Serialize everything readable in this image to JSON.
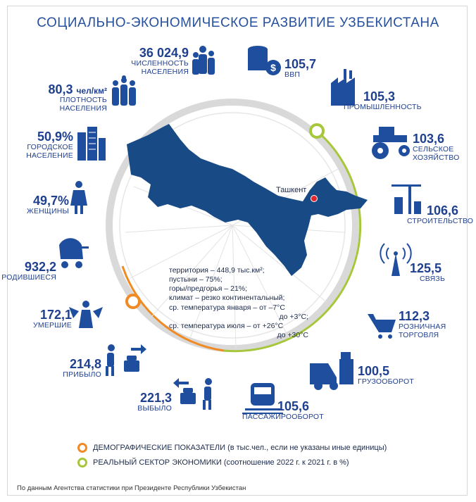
{
  "title": "СОЦИАЛЬНО-ЭКОНОМИЧЕСКОЕ РАЗВИТИЕ УЗБЕКИСТАНА",
  "colors": {
    "primary": "#1f4e9e",
    "map": "#184a86",
    "demographic": "#f08a24",
    "economic": "#a6c73a",
    "ring": "#d9d9d9",
    "capital": "#e3262b"
  },
  "capital_label": "Ташкент",
  "demographic": [
    {
      "value": "36 024,9",
      "caption": "ЧИСЛЕННОСТЬ НАСЕЛЕНИЯ",
      "icon": "population-icon"
    },
    {
      "value": "80,3",
      "unit": "чел/км²",
      "caption": "ПЛОТНОСТЬ НАСЕЛЕНИЯ",
      "icon": "density-icon"
    },
    {
      "value": "50,9%",
      "caption": "ГОРОДСКОЕ НАСЕЛЕНИЕ",
      "icon": "city-icon"
    },
    {
      "value": "49,7%",
      "caption": "ЖЕНЩИНЫ",
      "icon": "woman-icon"
    },
    {
      "value": "932,2",
      "caption": "РОДИВШИЕСЯ",
      "icon": "stroller-icon"
    },
    {
      "value": "172,1",
      "caption": "УМЕРШИЕ",
      "icon": "angel-icon"
    },
    {
      "value": "214,8",
      "caption": "ПРИБЫЛО",
      "icon": "arrival-icon"
    },
    {
      "value": "221,3",
      "caption": "ВЫБЫЛО",
      "icon": "departure-icon"
    }
  ],
  "economic": [
    {
      "value": "105,7",
      "caption": "ВВП",
      "icon": "gdp-icon"
    },
    {
      "value": "105,3",
      "caption": "ПРОМЫШЛЕННОСТЬ",
      "icon": "factory-icon"
    },
    {
      "value": "103,6",
      "caption": "СЕЛЬСКОЕ ХОЗЯЙСТВО",
      "icon": "tractor-icon"
    },
    {
      "value": "106,6",
      "caption": "СТРОИТЕЛЬСТВО",
      "icon": "crane-icon"
    },
    {
      "value": "125,5",
      "caption": "СВЯЗЬ",
      "icon": "antenna-icon"
    },
    {
      "value": "112,3",
      "caption": "РОЗНИЧНАЯ ТОРГОВЛЯ",
      "icon": "cart-icon"
    },
    {
      "value": "100,5",
      "caption": "ГРУЗООБОРОТ",
      "icon": "truck-icon"
    },
    {
      "value": "105,6",
      "caption": "ПАССАЖИРООБОРОТ",
      "icon": "train-icon"
    }
  ],
  "info": [
    "территория – 448,9 тыс.км²;",
    "пустыни – 75%;",
    "горы/предгорья – 21%;",
    "климат – резко континентальный;",
    "ср. температура января – от –7°С",
    "до +3°С;",
    "ср. температура июля – от +26°С",
    "до +30°С"
  ],
  "legend": [
    {
      "text": "ДЕМОГРАФИЧЕСКИЕ ПОКАЗАТЕЛИ (в тыс.чел., если не указаны иные единицы)",
      "color": "#f08a24"
    },
    {
      "text": "РЕАЛЬНЫЙ СЕКТОР ЭКОНОМИКИ (соотношение 2022 г. к 2021 г. в %)",
      "color": "#a6c73a"
    }
  ],
  "source": "По данным Агентства статистики при Президенте Республики Узбекистан"
}
